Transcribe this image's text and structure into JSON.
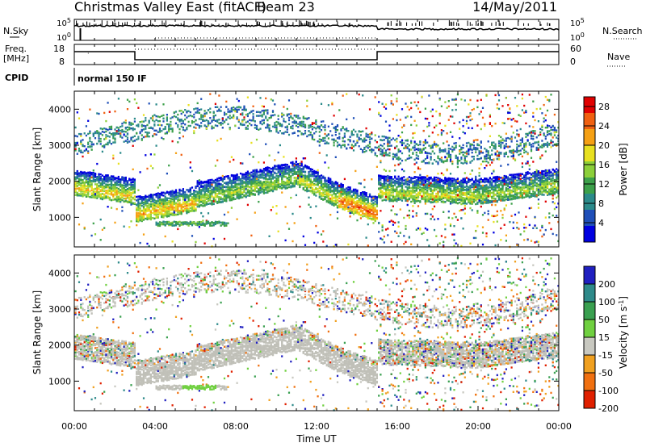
{
  "header": {
    "station": "Christmas Valley East (fitACF)",
    "beam": "Beam 23",
    "date": "14/May/2011"
  },
  "panels": {
    "nsky_label": "N.Sky",
    "nsearch_label": "N.Search",
    "freq_label_1": "Freq.",
    "freq_label_2": "[MHz]",
    "nave_label": "Nave",
    "cpid_label": "CPID",
    "cpid_value": "normal 150 IF",
    "nsky_ticks": [
      "10^5",
      "10^0"
    ],
    "nsearch_ticks": [
      "10^5",
      "10^0"
    ],
    "freq_ticks": [
      "18",
      "8"
    ],
    "nave_ticks": [
      "60",
      "0"
    ]
  },
  "chart_data": [
    {
      "type": "heatmap",
      "name": "power",
      "ylabel": "Slant Range [km]",
      "xlabel": "Time UT",
      "x_ticks": [
        "00:00",
        "04:00",
        "08:00",
        "12:00",
        "16:00",
        "20:00",
        "00:00"
      ],
      "y_ticks": [
        1000,
        2000,
        3000,
        4000
      ],
      "xlim_hours": [
        0,
        24
      ],
      "ylim_km": [
        180,
        4500
      ],
      "colorbar": {
        "label": "Power [dB]",
        "ticks": [
          "4",
          "8",
          "12",
          "16",
          "20",
          "24",
          "28"
        ],
        "range": [
          0,
          30
        ],
        "colors": [
          "#0000e0",
          "#1f4fb8",
          "#2b8a8a",
          "#3ca04a",
          "#8ccf3a",
          "#e8e020",
          "#f5a014",
          "#f06010",
          "#e00000"
        ]
      },
      "bands": [
        {
          "h0": 0,
          "h1": 3,
          "r0": 1850,
          "r1": 1600,
          "db": 20
        },
        {
          "h0": 3,
          "h1": 6,
          "r0": 1100,
          "r1": 1400,
          "db": 22
        },
        {
          "h0": 6,
          "h1": 11,
          "r0": 1500,
          "r1": 2100,
          "db": 16
        },
        {
          "h0": 11,
          "h1": 13,
          "r0": 2100,
          "r1": 1500,
          "db": 18
        },
        {
          "h0": 13,
          "h1": 15,
          "r0": 1500,
          "r1": 1100,
          "db": 26
        },
        {
          "h0": 15,
          "h1": 20,
          "r0": 1700,
          "r1": 1600,
          "db": 18
        },
        {
          "h0": 20,
          "h1": 24,
          "r0": 1600,
          "r1": 1900,
          "db": 16
        }
      ]
    },
    {
      "type": "heatmap",
      "name": "velocity",
      "ylabel": "Slant Range [km]",
      "xlabel": "Time UT",
      "x_ticks": [
        "00:00",
        "04:00",
        "08:00",
        "12:00",
        "16:00",
        "20:00",
        "00:00"
      ],
      "y_ticks": [
        1000,
        2000,
        3000,
        4000
      ],
      "xlim_hours": [
        0,
        24
      ],
      "ylim_km": [
        180,
        4500
      ],
      "colorbar": {
        "label": "Velocity [m s^-1]",
        "ticks": [
          "200",
          "100",
          "50",
          "15",
          "-15",
          "-50",
          "-100",
          "-200"
        ],
        "colors": [
          "#2020c0",
          "#2e8a8a",
          "#3aa050",
          "#70d040",
          "#c8c8c0",
          "#f0a020",
          "#f07010",
          "#e02000"
        ]
      },
      "ground_scatter_color": "#c0c0b8"
    }
  ]
}
